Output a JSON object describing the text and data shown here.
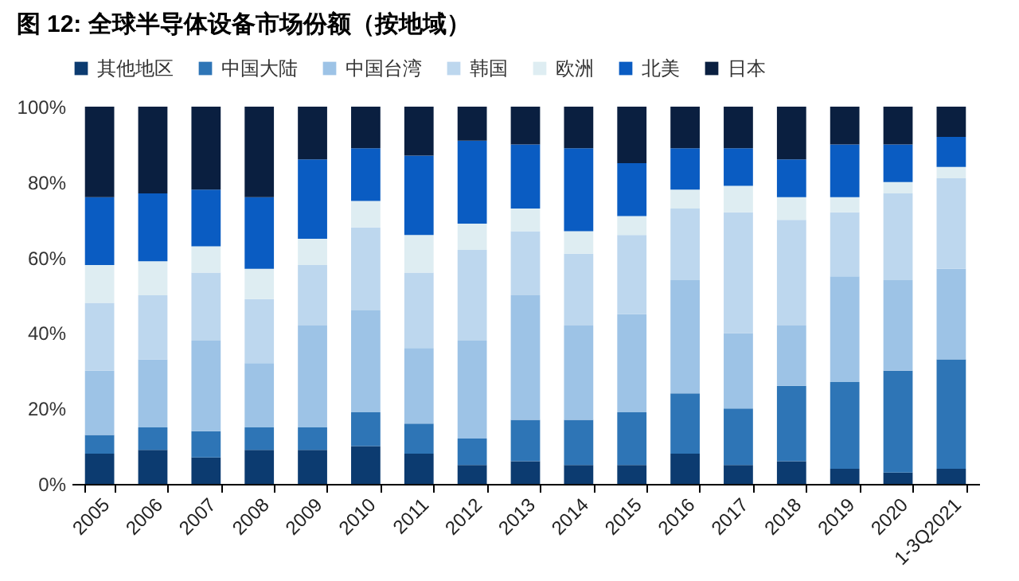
{
  "chart_data": {
    "type": "bar",
    "title": "图 12: 全球半导体设备市场份额（按地域）",
    "stacked": true,
    "legend": "top",
    "categories": [
      "2005",
      "2006",
      "2007",
      "2008",
      "2009",
      "2010",
      "2011",
      "2012",
      "2013",
      "2014",
      "2015",
      "2016",
      "2017",
      "2018",
      "2019",
      "2020",
      "1-3Q2021"
    ],
    "ylim": [
      0,
      100
    ],
    "yticks": [
      {
        "value": 0,
        "label": "0%"
      },
      {
        "value": 20,
        "label": "20%"
      },
      {
        "value": 40,
        "label": "40%"
      },
      {
        "value": 60,
        "label": "60%"
      },
      {
        "value": 80,
        "label": "80%"
      },
      {
        "value": 100,
        "label": "100%"
      }
    ],
    "series": [
      {
        "name": "其他地区",
        "color": "#0c3b70",
        "values": [
          8,
          9,
          7,
          9,
          9,
          10,
          8,
          5,
          6,
          5,
          5,
          8,
          5,
          6,
          4,
          3,
          4
        ]
      },
      {
        "name": "中国大陆",
        "color": "#2e75b6",
        "values": [
          5,
          6,
          7,
          6,
          6,
          9,
          8,
          7,
          11,
          12,
          14,
          16,
          15,
          20,
          23,
          27,
          29
        ]
      },
      {
        "name": "中国台湾",
        "color": "#9dc3e6",
        "values": [
          17,
          18,
          24,
          17,
          27,
          27,
          20,
          26,
          33,
          25,
          26,
          30,
          20,
          16,
          28,
          24,
          24
        ]
      },
      {
        "name": "韩国",
        "color": "#bdd7ee",
        "values": [
          18,
          17,
          18,
          17,
          16,
          22,
          20,
          24,
          17,
          19,
          21,
          19,
          32,
          28,
          17,
          23,
          24
        ]
      },
      {
        "name": "欧洲",
        "color": "#deedf2",
        "values": [
          10,
          9,
          7,
          8,
          7,
          7,
          10,
          7,
          6,
          6,
          5,
          5,
          7,
          6,
          4,
          3,
          3
        ]
      },
      {
        "name": "北美",
        "color": "#0a5cc2",
        "values": [
          18,
          18,
          15,
          19,
          21,
          14,
          21,
          22,
          17,
          22,
          14,
          11,
          10,
          10,
          14,
          10,
          8
        ]
      },
      {
        "name": "日本",
        "color": "#0a1f40",
        "values": [
          24,
          23,
          22,
          24,
          14,
          11,
          13,
          9,
          10,
          11,
          15,
          11,
          11,
          14,
          10,
          10,
          8
        ]
      }
    ]
  }
}
